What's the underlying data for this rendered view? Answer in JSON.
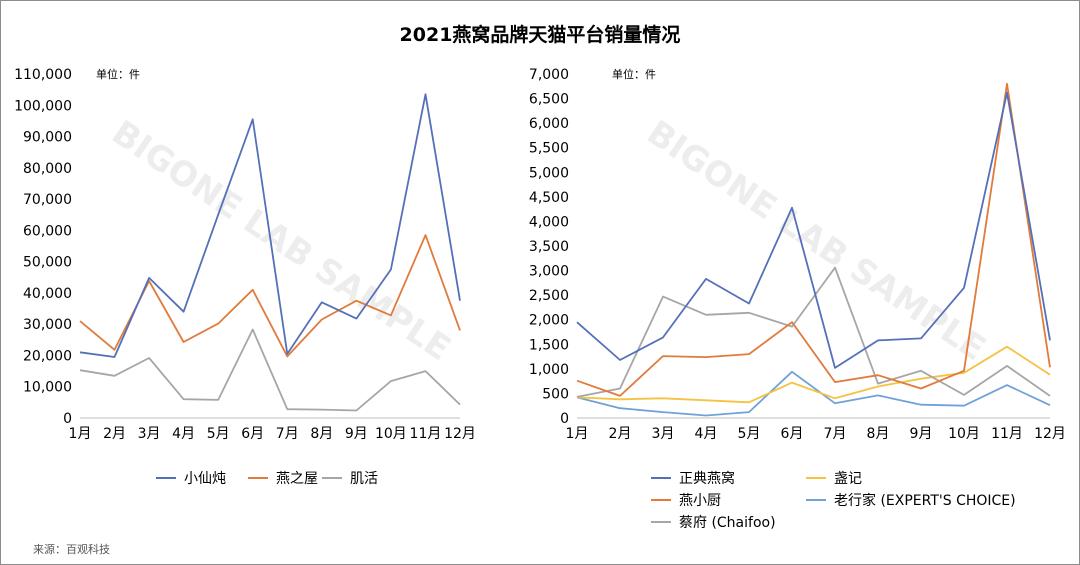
{
  "title": "2021燕窝品牌天猫平台销量情况",
  "source": "来源：百观科技",
  "watermark": "BIGONE LAB SAMPLE",
  "chart_data": [
    {
      "type": "line",
      "unit_label": "单位：件",
      "categories": [
        "1月",
        "2月",
        "3月",
        "4月",
        "5月",
        "6月",
        "7月",
        "8月",
        "9月",
        "10月",
        "11月",
        "12月"
      ],
      "ylim": [
        0,
        110000
      ],
      "yticks": [
        "0",
        "10,000",
        "20,000",
        "30,000",
        "40,000",
        "50,000",
        "60,000",
        "70,000",
        "80,000",
        "90,000",
        "100,000",
        "110,000"
      ],
      "grid": false,
      "legend_position": "bottom",
      "series": [
        {
          "name": "小仙炖",
          "color": "#5470b8",
          "values": [
            21000,
            19500,
            44800,
            34000,
            65000,
            95500,
            20500,
            37000,
            31800,
            47500,
            103500,
            37500
          ]
        },
        {
          "name": "燕之屋",
          "color": "#e07b3c",
          "values": [
            31000,
            21800,
            43800,
            24300,
            30200,
            41000,
            19700,
            31500,
            37500,
            32800,
            58500,
            28000
          ]
        },
        {
          "name": "肌活",
          "color": "#a6a6a6",
          "values": [
            15300,
            13500,
            19200,
            6000,
            5800,
            28300,
            2800,
            2700,
            2400,
            11800,
            15000,
            4300
          ]
        }
      ]
    },
    {
      "type": "line",
      "unit_label": "单位：件",
      "categories": [
        "1月",
        "2月",
        "3月",
        "4月",
        "5月",
        "6月",
        "7月",
        "8月",
        "9月",
        "10月",
        "11月",
        "12月"
      ],
      "ylim": [
        0,
        7000
      ],
      "yticks": [
        "0",
        "500",
        "1,000",
        "1,500",
        "2,000",
        "2,500",
        "3,000",
        "3,500",
        "4,000",
        "4,500",
        "5,000",
        "5,500",
        "6,000",
        "6,500",
        "7,000"
      ],
      "grid": false,
      "legend_position": "bottom",
      "series": [
        {
          "name": "正典燕窝",
          "color": "#5470b8",
          "values": [
            1950,
            1180,
            1640,
            2830,
            2330,
            4280,
            1020,
            1580,
            1620,
            2650,
            6620,
            1580
          ]
        },
        {
          "name": "燕小厨",
          "color": "#e07b3c",
          "values": [
            760,
            450,
            1260,
            1240,
            1300,
            1950,
            730,
            870,
            600,
            960,
            6800,
            1030
          ]
        },
        {
          "name": "蔡府 (Chaifoo)",
          "color": "#a6a6a6",
          "values": [
            430,
            600,
            2470,
            2100,
            2140,
            1860,
            3060,
            700,
            960,
            470,
            1060,
            450
          ]
        },
        {
          "name": "盏记",
          "color": "#f5c242",
          "values": [
            420,
            380,
            400,
            360,
            320,
            720,
            400,
            640,
            800,
            920,
            1450,
            880
          ]
        },
        {
          "name": "老行家 (EXPERT'S CHOICE)",
          "color": "#6fa2d8",
          "values": [
            420,
            200,
            120,
            50,
            120,
            940,
            300,
            460,
            270,
            250,
            670,
            260
          ]
        }
      ]
    }
  ]
}
